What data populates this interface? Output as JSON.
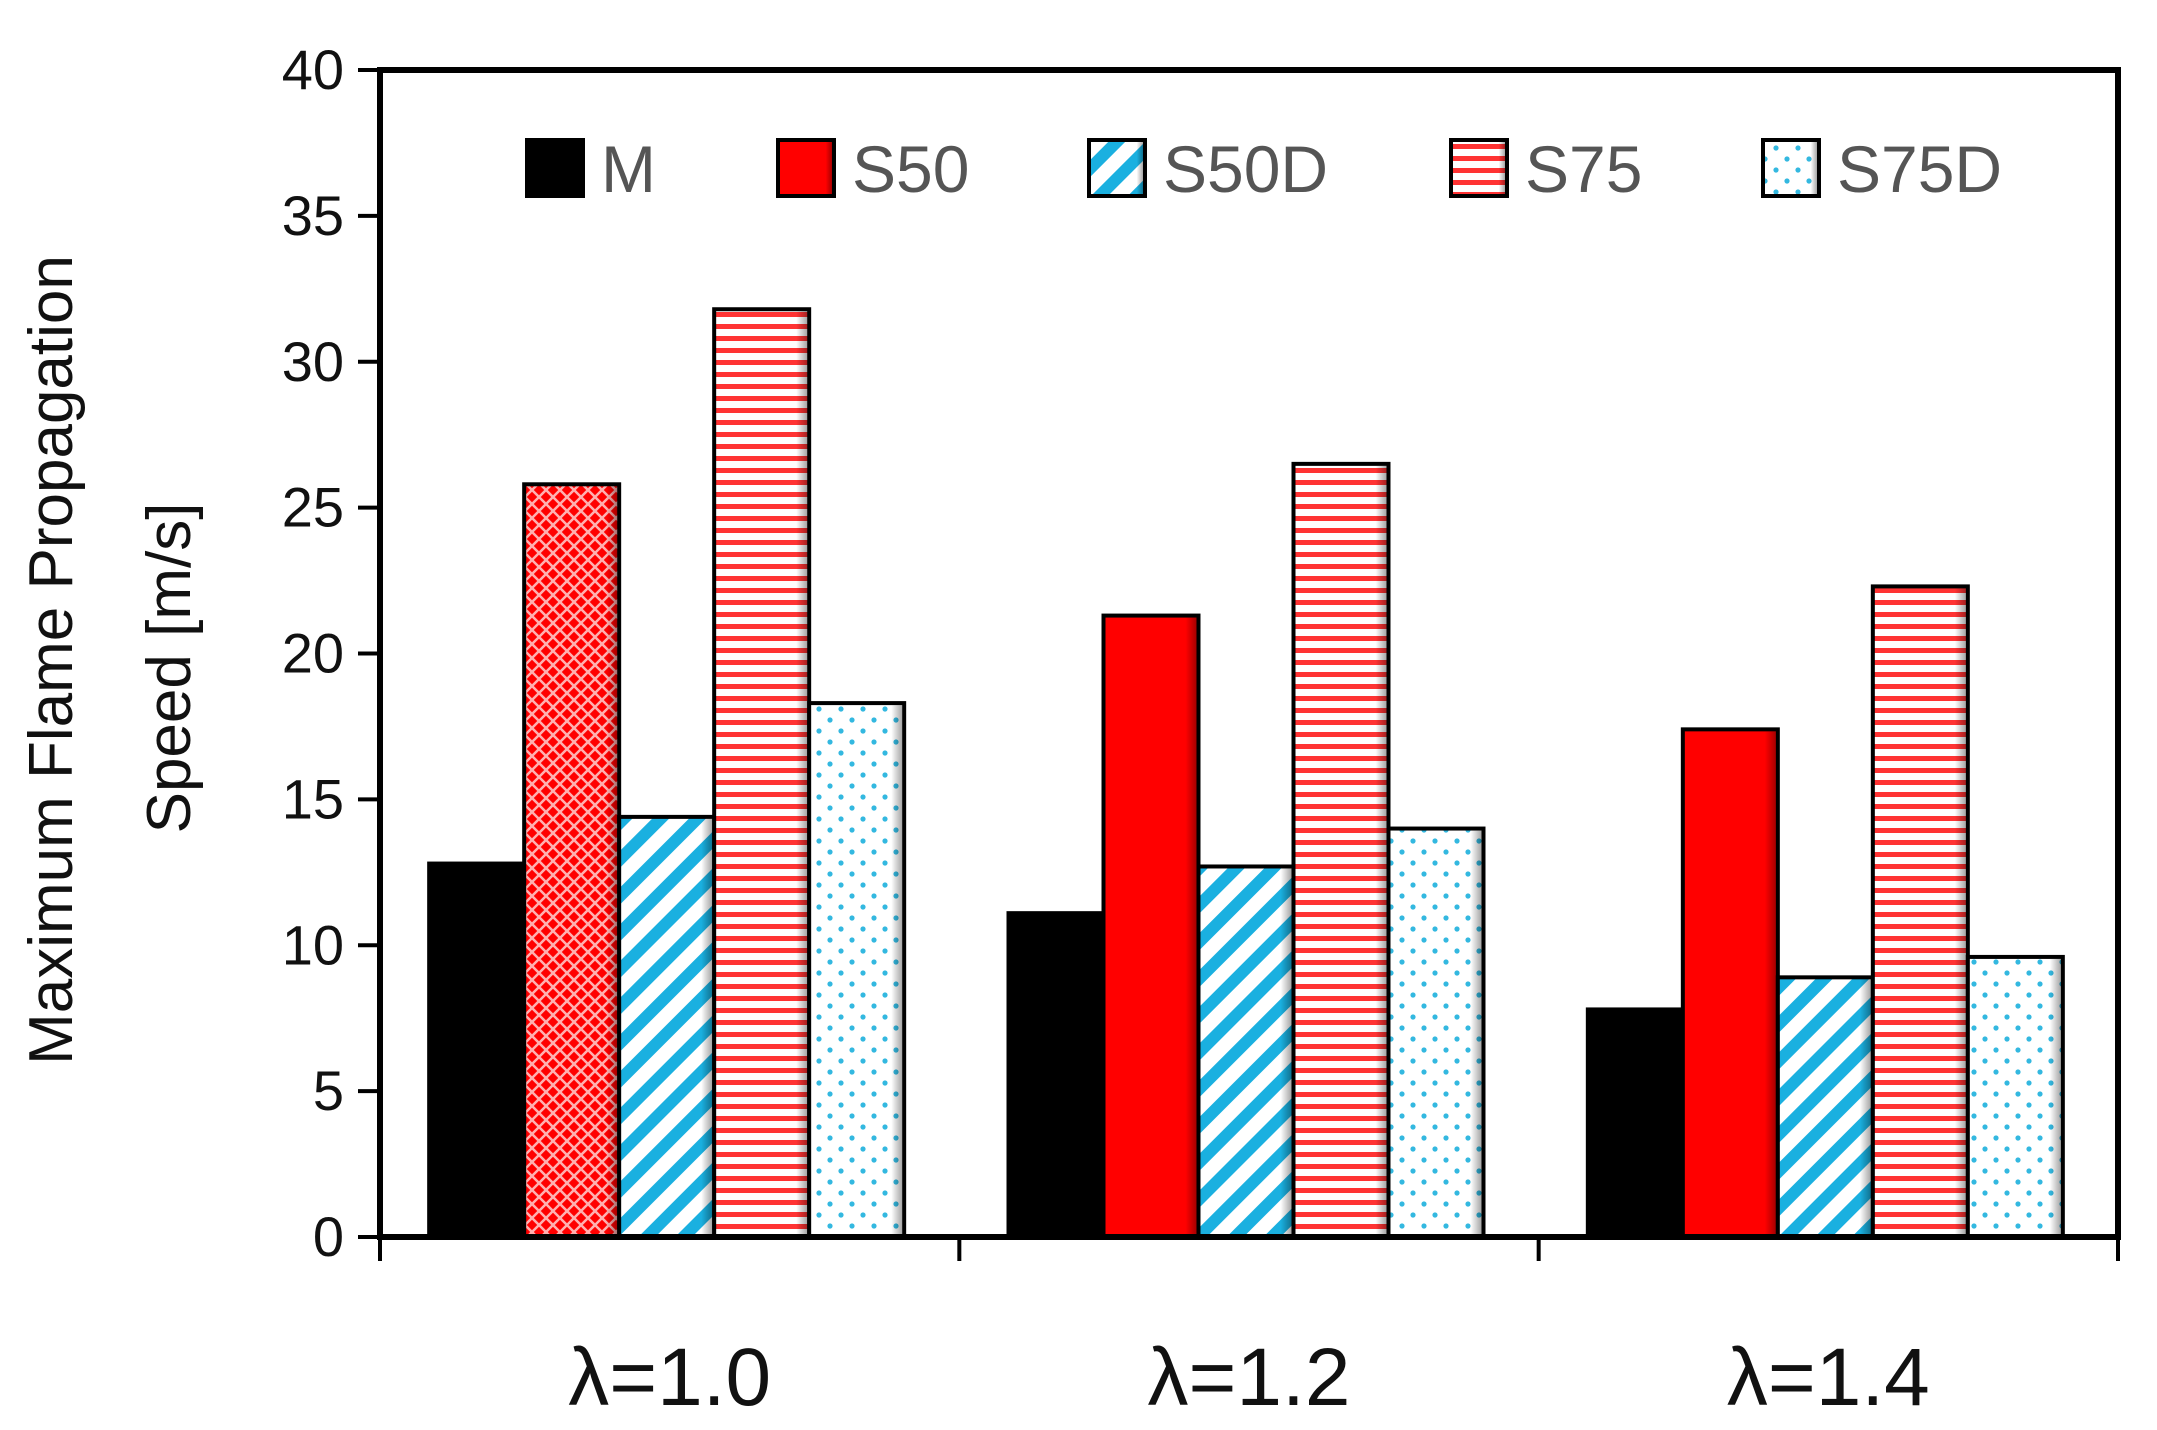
{
  "chart_data": {
    "type": "bar",
    "title": "",
    "xlabel": "",
    "ylabel": [
      "Maximum Flame Propagation",
      "Speed [m/s]"
    ],
    "ylim": [
      0,
      40
    ],
    "yticks": [
      0,
      5,
      10,
      15,
      20,
      25,
      30,
      35,
      40
    ],
    "categories": [
      "λ=1.0",
      "λ=1.2",
      "λ=1.4"
    ],
    "legend_position": "top",
    "grid": false,
    "series": [
      {
        "name": "M",
        "values": [
          12.8,
          11.1,
          7.8
        ],
        "color": "#000000",
        "pattern": "solid"
      },
      {
        "name": "S50",
        "values": [
          25.8,
          21.3,
          17.4
        ],
        "color": "#ff0000",
        "pattern": "solid"
      },
      {
        "name": "S50D",
        "values": [
          14.4,
          12.7,
          8.9
        ],
        "color": "#1ab0e0",
        "pattern": "diagonal"
      },
      {
        "name": "S75",
        "values": [
          31.8,
          26.5,
          22.3
        ],
        "color": "#ff3333",
        "pattern": "horizontal"
      },
      {
        "name": "S75D",
        "values": [
          18.3,
          14.0,
          9.6
        ],
        "color": "#33b8e0",
        "pattern": "dots"
      }
    ]
  }
}
